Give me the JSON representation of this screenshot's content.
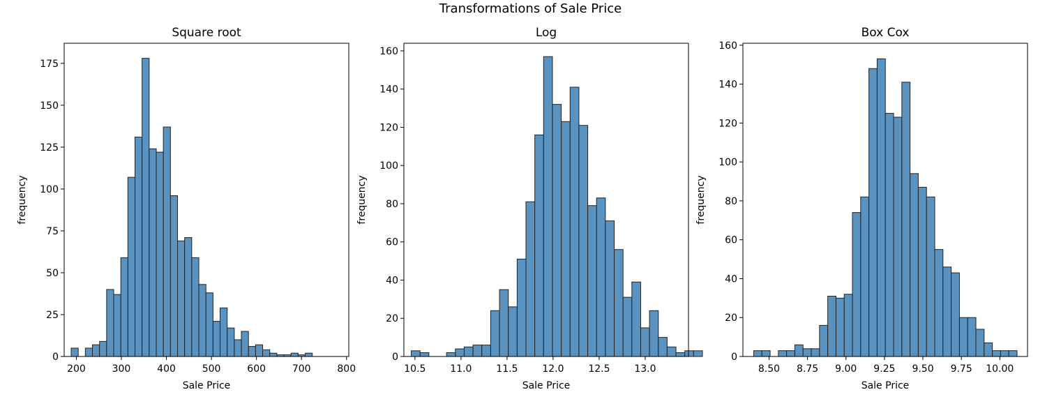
{
  "figure": {
    "title": "Transformations of Sale Price"
  },
  "colors": {
    "bar_fill": "#5b93c0",
    "bar_edge": "#222222",
    "axis": "#000000"
  },
  "chart_data": [
    {
      "type": "bar",
      "title": "Square root",
      "xlabel": "Sale Price",
      "ylabel": "frequency",
      "xlim": [
        173,
        805
      ],
      "ylim": [
        0,
        187
      ],
      "xticks": [
        "200",
        "300",
        "400",
        "500",
        "600",
        "700",
        "800"
      ],
      "xtick_values": [
        200,
        300,
        400,
        500,
        600,
        700,
        800
      ],
      "yticks": [
        "0",
        "25",
        "50",
        "75",
        "100",
        "125",
        "150",
        "175"
      ],
      "ytick_values": [
        0,
        25,
        50,
        75,
        100,
        125,
        150,
        175
      ],
      "bin_start": 188.5,
      "bin_width": 15.75,
      "values": [
        5,
        0,
        5,
        7,
        9,
        40,
        37,
        59,
        107,
        131,
        178,
        124,
        122,
        137,
        96,
        69,
        71,
        59,
        43,
        38,
        21,
        29,
        17,
        10,
        15,
        6,
        7,
        4,
        2,
        1,
        1,
        2,
        1,
        2
      ]
    },
    {
      "type": "bar",
      "title": "Log",
      "xlabel": "Sale Price",
      "ylabel": "frequency",
      "xlim": [
        10.38,
        13.47
      ],
      "ylim": [
        0,
        164
      ],
      "xticks": [
        "10.5",
        "11.0",
        "11.5",
        "12.0",
        "12.5",
        "13.0"
      ],
      "xtick_values": [
        10.5,
        11.0,
        11.5,
        12.0,
        12.5,
        13.0
      ],
      "yticks": [
        "0",
        "20",
        "40",
        "60",
        "80",
        "100",
        "120",
        "140",
        "160"
      ],
      "ytick_values": [
        0,
        20,
        40,
        60,
        80,
        100,
        120,
        140,
        160
      ],
      "bin_start": 10.46,
      "bin_width": 0.0958,
      "values": [
        3,
        2,
        0,
        0,
        2,
        4,
        5,
        6,
        6,
        24,
        35,
        26,
        51,
        81,
        116,
        157,
        132,
        123,
        141,
        121,
        79,
        83,
        71,
        56,
        31,
        39,
        15,
        24,
        10,
        5,
        2,
        3,
        3
      ]
    },
    {
      "type": "bar",
      "title": "Box Cox",
      "xlabel": "Sale Price",
      "ylabel": "frequency",
      "xlim": [
        8.33,
        10.18
      ],
      "ylim": [
        0,
        161
      ],
      "xticks": [
        "8.50",
        "8.75",
        "9.00",
        "9.25",
        "9.50",
        "9.75",
        "10.00"
      ],
      "xtick_values": [
        8.5,
        8.75,
        9.0,
        9.25,
        9.5,
        9.75,
        10.0
      ],
      "yticks": [
        "0",
        "20",
        "40",
        "60",
        "80",
        "100",
        "120",
        "140",
        "160"
      ],
      "ytick_values": [
        0,
        20,
        40,
        60,
        80,
        100,
        120,
        140,
        160
      ],
      "bin_start": 8.4,
      "bin_width": 0.0535,
      "values": [
        3,
        3,
        0,
        3,
        3,
        6,
        4,
        4,
        16,
        31,
        30,
        32,
        74,
        82,
        148,
        153,
        125,
        123,
        141,
        94,
        87,
        82,
        55,
        46,
        43,
        20,
        20,
        14,
        7,
        3,
        3,
        3
      ]
    }
  ]
}
